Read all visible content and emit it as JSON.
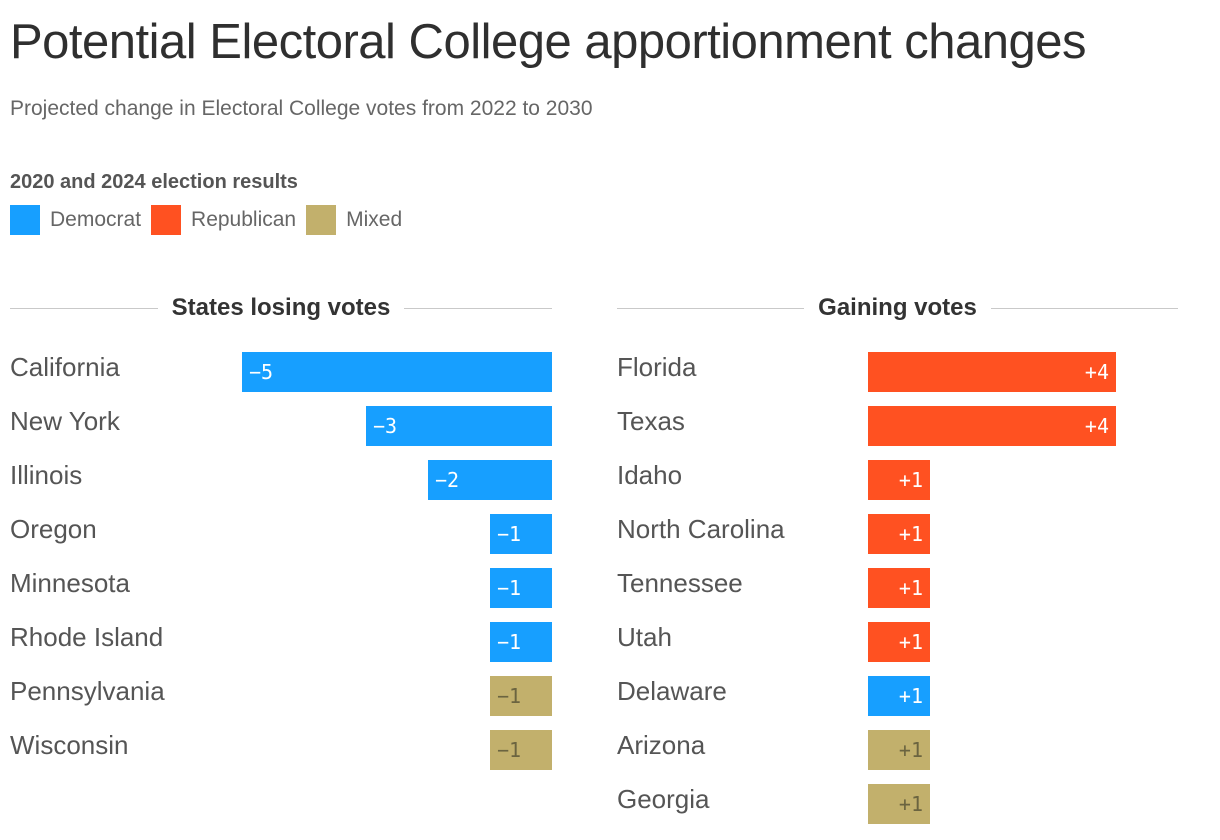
{
  "header": {
    "title": "Potential Electoral College apportionment changes",
    "subtitle": "Projected change in Electoral College votes from 2022 to 2030"
  },
  "legend": {
    "title": "2020 and 2024 election results",
    "items": [
      {
        "label": "Democrat",
        "color": "#179fff"
      },
      {
        "label": "Republican",
        "color": "#ff5121"
      },
      {
        "label": "Mixed",
        "color": "#c2b06c"
      }
    ]
  },
  "chart_data": [
    {
      "type": "bar",
      "orientation": "horizontal",
      "title": "States losing votes",
      "categories": [
        "California",
        "New York",
        "Illinois",
        "Oregon",
        "Minnesota",
        "Rhode Island",
        "Pennsylvania",
        "Wisconsin"
      ],
      "values": [
        -5,
        -3,
        -2,
        -1,
        -1,
        -1,
        -1,
        -1
      ],
      "labels": [
        "−5",
        "−3",
        "−2",
        "−1",
        "−1",
        "−1",
        "−1",
        "−1"
      ],
      "party": [
        "Democrat",
        "Democrat",
        "Democrat",
        "Democrat",
        "Democrat",
        "Democrat",
        "Mixed",
        "Mixed"
      ],
      "xlim": [
        -5,
        0
      ],
      "xlabel": "",
      "ylabel": "",
      "grid": false
    },
    {
      "type": "bar",
      "orientation": "horizontal",
      "title": "Gaining votes",
      "categories": [
        "Florida",
        "Texas",
        "Idaho",
        "North Carolina",
        "Tennessee",
        "Utah",
        "Delaware",
        "Arizona",
        "Georgia"
      ],
      "values": [
        4,
        4,
        1,
        1,
        1,
        1,
        1,
        1,
        1
      ],
      "labels": [
        "+4",
        "+4",
        "+1",
        "+1",
        "+1",
        "+1",
        "+1",
        "+1",
        "+1"
      ],
      "party": [
        "Republican",
        "Republican",
        "Republican",
        "Republican",
        "Republican",
        "Republican",
        "Democrat",
        "Mixed",
        "Mixed"
      ],
      "xlim": [
        0,
        4
      ],
      "xlabel": "",
      "ylabel": "",
      "grid": false
    }
  ],
  "party_colors": {
    "Democrat": "#179fff",
    "Republican": "#ff5121",
    "Mixed": "#c2b06c"
  },
  "label_colors": {
    "Democrat": "#ffffff",
    "Republican": "#ffffff",
    "Mixed": "#6b6440"
  }
}
